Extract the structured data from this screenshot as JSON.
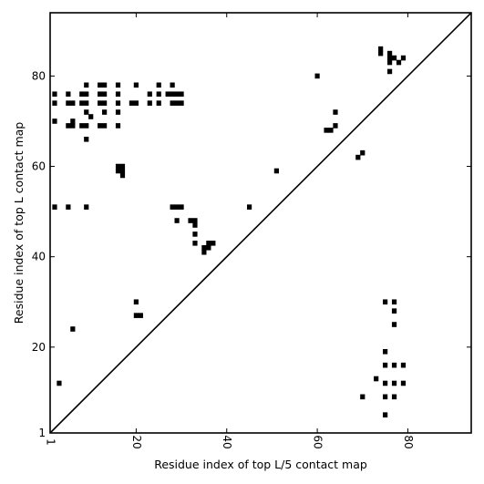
{
  "chart_data": {
    "type": "scatter",
    "xlabel": "Residue index of top L/5 contact map",
    "ylabel": "Residue index of top L contact map",
    "xlim": [
      1,
      94
    ],
    "ylim": [
      1,
      94
    ],
    "x_ticks": [
      1,
      20,
      40,
      60,
      80
    ],
    "y_ticks": [
      1,
      20,
      40,
      60,
      80
    ],
    "x_tick_labels": [
      "1",
      "20",
      "40",
      "60",
      "80"
    ],
    "y_tick_labels": [
      "1",
      "20",
      "40",
      "60",
      "80"
    ],
    "diagonal": true,
    "marker_color": "#000000",
    "points_upper": [
      [
        2,
        76
      ],
      [
        2,
        74
      ],
      [
        2,
        70
      ],
      [
        2,
        51
      ],
      [
        5,
        76
      ],
      [
        5,
        74
      ],
      [
        5,
        69
      ],
      [
        5,
        51
      ],
      [
        6,
        74
      ],
      [
        6,
        70
      ],
      [
        6,
        69
      ],
      [
        8,
        76
      ],
      [
        8,
        74
      ],
      [
        8,
        69
      ],
      [
        9,
        78
      ],
      [
        9,
        76
      ],
      [
        9,
        74
      ],
      [
        9,
        72
      ],
      [
        9,
        69
      ],
      [
        9,
        66
      ],
      [
        9,
        51
      ],
      [
        10,
        71
      ],
      [
        12,
        78
      ],
      [
        12,
        76
      ],
      [
        12,
        74
      ],
      [
        12,
        69
      ],
      [
        13,
        78
      ],
      [
        13,
        76
      ],
      [
        13,
        74
      ],
      [
        13,
        72
      ],
      [
        13,
        69
      ],
      [
        16,
        78
      ],
      [
        16,
        76
      ],
      [
        16,
        74
      ],
      [
        16,
        72
      ],
      [
        16,
        69
      ],
      [
        16,
        60
      ],
      [
        16,
        59
      ],
      [
        17,
        60
      ],
      [
        17,
        59
      ],
      [
        17,
        58
      ],
      [
        19,
        74
      ],
      [
        20,
        78
      ],
      [
        20,
        74
      ],
      [
        23,
        76
      ],
      [
        23,
        74
      ],
      [
        25,
        78
      ],
      [
        25,
        76
      ],
      [
        25,
        74
      ],
      [
        27,
        76
      ],
      [
        28,
        78
      ],
      [
        28,
        76
      ],
      [
        28,
        74
      ],
      [
        28,
        51
      ],
      [
        29,
        76
      ],
      [
        29,
        74
      ],
      [
        29,
        51
      ],
      [
        29,
        48
      ],
      [
        30,
        76
      ],
      [
        30,
        74
      ],
      [
        30,
        51
      ],
      [
        32,
        48
      ],
      [
        33,
        48
      ],
      [
        33,
        47
      ],
      [
        33,
        45
      ],
      [
        33,
        43
      ],
      [
        35,
        42
      ],
      [
        35,
        41
      ],
      [
        36,
        43
      ],
      [
        36,
        42
      ],
      [
        37,
        43
      ],
      [
        45,
        51
      ],
      [
        51,
        59
      ],
      [
        60,
        80
      ],
      [
        62,
        68
      ],
      [
        63,
        68
      ],
      [
        64,
        72
      ],
      [
        64,
        69
      ],
      [
        69,
        62
      ],
      [
        70,
        63
      ],
      [
        74,
        86
      ],
      [
        74,
        85
      ],
      [
        76,
        85
      ],
      [
        76,
        84
      ],
      [
        76,
        83
      ],
      [
        76,
        81
      ],
      [
        77,
        84
      ],
      [
        78,
        83
      ],
      [
        79,
        84
      ]
    ],
    "points_lower": [
      [
        3,
        12
      ],
      [
        6,
        24
      ],
      [
        20,
        30
      ],
      [
        20,
        27
      ],
      [
        21,
        27
      ],
      [
        70,
        9
      ],
      [
        73,
        13
      ],
      [
        75,
        30
      ],
      [
        75,
        19
      ],
      [
        75,
        16
      ],
      [
        75,
        12
      ],
      [
        75,
        9
      ],
      [
        75,
        5
      ],
      [
        77,
        30
      ],
      [
        77,
        28
      ],
      [
        77,
        25
      ],
      [
        77,
        16
      ],
      [
        77,
        12
      ],
      [
        77,
        9
      ],
      [
        79,
        16
      ],
      [
        79,
        12
      ]
    ]
  }
}
